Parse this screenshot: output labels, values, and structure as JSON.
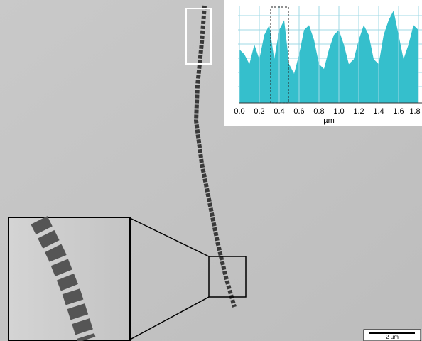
{
  "chart_data": {
    "type": "area",
    "x_label": "µm",
    "xlim": [
      0,
      1.8
    ],
    "ylim": [
      0,
      100
    ],
    "xticks": [
      {
        "value": 0,
        "label": "0.0"
      },
      {
        "value": 0.2,
        "label": "0.2"
      },
      {
        "value": 0.4,
        "label": "0.4"
      },
      {
        "value": 0.6,
        "label": "0.6"
      },
      {
        "value": 0.8,
        "label": "0.8"
      },
      {
        "value": 1,
        "label": "1.0"
      },
      {
        "value": 1.2,
        "label": "1.2"
      },
      {
        "value": 1.4,
        "label": "1.4"
      },
      {
        "value": 1.6,
        "label": "1.6"
      },
      {
        "value": 1.8,
        "label": "1.8"
      }
    ],
    "x": [
      0,
      0.05,
      0.1,
      0.15,
      0.2,
      0.25,
      0.3,
      0.35,
      0.4,
      0.45,
      0.5,
      0.55,
      0.6,
      0.65,
      0.7,
      0.75,
      0.8,
      0.85,
      0.9,
      0.95,
      1,
      1.05,
      1.1,
      1.15,
      1.2,
      1.25,
      1.3,
      1.35,
      1.4,
      1.45,
      1.5,
      1.55,
      1.6,
      1.65,
      1.7,
      1.75,
      1.8
    ],
    "values": [
      55,
      50,
      40,
      60,
      45,
      70,
      80,
      45,
      75,
      85,
      40,
      30,
      50,
      75,
      80,
      65,
      40,
      35,
      55,
      70,
      75,
      60,
      40,
      45,
      65,
      80,
      70,
      45,
      40,
      70,
      85,
      95,
      70,
      45,
      60,
      80,
      75
    ],
    "color": "#35bfcc",
    "grid": true
  },
  "scale_bar": "2 µm"
}
